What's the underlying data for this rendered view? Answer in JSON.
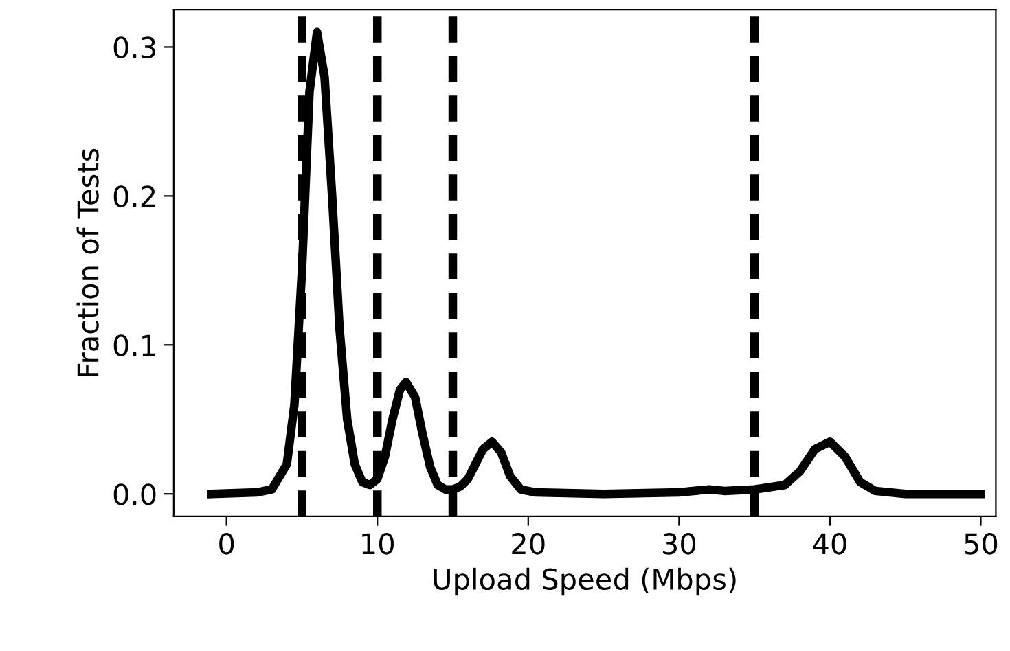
{
  "chart_data": {
    "type": "line",
    "xlabel": "Upload Speed (Mbps)",
    "ylabel": "Fraction of Tests",
    "x": [
      -1,
      2,
      3,
      4,
      4.5,
      5,
      5.5,
      6,
      6.5,
      7,
      7.5,
      8,
      8.5,
      9,
      9.5,
      10,
      10.5,
      11,
      11.5,
      11.9,
      12.5,
      13,
      13.5,
      14,
      14.5,
      15,
      15.5,
      16,
      16.5,
      17,
      17.6,
      18.2,
      18.8,
      19.5,
      20.5,
      25,
      30,
      32,
      33,
      35,
      37,
      38,
      39,
      40,
      41,
      42,
      43,
      45,
      50
    ],
    "series": [
      {
        "color": "#000000",
        "values": [
          0,
          0.001,
          0.003,
          0.02,
          0.06,
          0.15,
          0.27,
          0.31,
          0.28,
          0.2,
          0.11,
          0.05,
          0.02,
          0.008,
          0.006,
          0.01,
          0.025,
          0.05,
          0.07,
          0.075,
          0.065,
          0.04,
          0.018,
          0.006,
          0.003,
          0.003,
          0.005,
          0.01,
          0.02,
          0.03,
          0.035,
          0.028,
          0.012,
          0.003,
          0.001,
          0,
          0.001,
          0.003,
          0.002,
          0.003,
          0.006,
          0.015,
          0.03,
          0.035,
          0.025,
          0.008,
          0.002,
          0,
          0
        ]
      }
    ],
    "xlim": [
      -3.5,
      51
    ],
    "ylim": [
      -0.015,
      0.325
    ],
    "xticks": [
      0,
      10,
      20,
      30,
      40,
      50
    ],
    "yticks": [
      {
        "value": 0,
        "label": "0.0"
      },
      0.1,
      0.2,
      0.3
    ],
    "ref_lines": [
      {
        "axis": "x",
        "value": 5,
        "color": "#000000",
        "line_style": "dashed"
      },
      {
        "axis": "x",
        "value": 10,
        "color": "#000000",
        "line_style": "dashed"
      },
      {
        "axis": "x",
        "value": 15,
        "color": "#000000",
        "line_style": "dashed"
      },
      {
        "axis": "x",
        "value": 35,
        "color": "#000000",
        "line_style": "dashed"
      }
    ],
    "grid": false,
    "legend": false,
    "marker": "none",
    "line_style": "solid"
  }
}
